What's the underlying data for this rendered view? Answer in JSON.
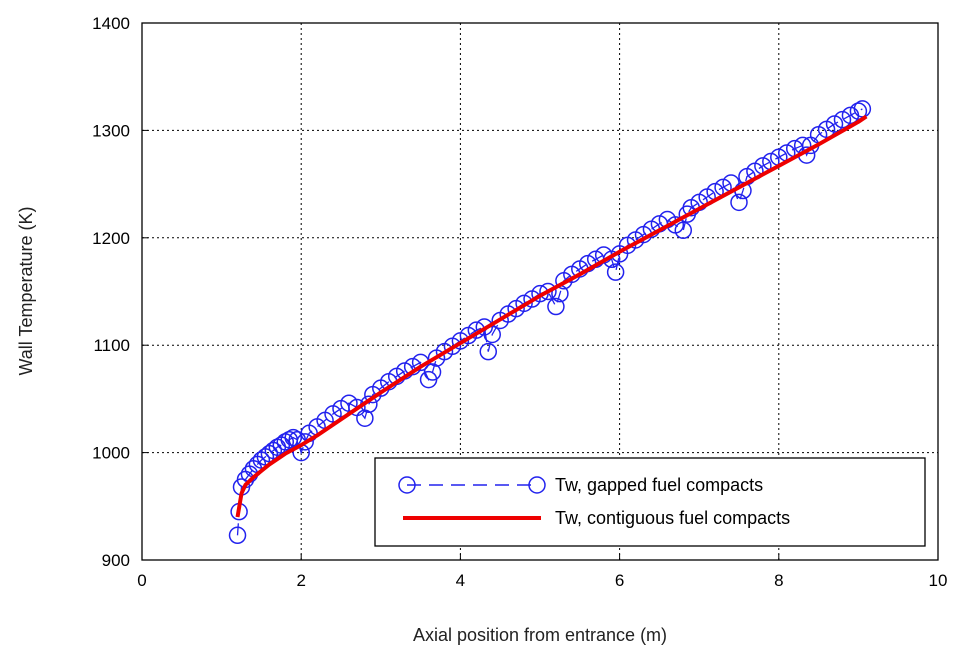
{
  "chart_data": {
    "type": "line",
    "title": "",
    "xlabel": "Axial position from entrance (m)",
    "ylabel": "Wall Temperature (K)",
    "xlim": [
      0,
      10
    ],
    "ylim": [
      900,
      1400
    ],
    "xticks": [
      0,
      2,
      4,
      6,
      8,
      10
    ],
    "yticks": [
      900,
      1000,
      1100,
      1200,
      1300,
      1400
    ],
    "xtick_labels": [
      "0",
      "2",
      "4",
      "6",
      "8",
      "10"
    ],
    "ytick_labels": [
      "900",
      "1000",
      "1100",
      "1200",
      "1300",
      "1400"
    ],
    "grid": "dotted",
    "legend_position": "bottom-right",
    "series": [
      {
        "name": "Tw, gapped fuel compacts",
        "style": "dashed-circles",
        "color": "#0000cc",
        "x": [
          1.2,
          1.22,
          1.25,
          1.3,
          1.35,
          1.4,
          1.45,
          1.5,
          1.55,
          1.6,
          1.65,
          1.7,
          1.75,
          1.8,
          1.85,
          1.9,
          1.95,
          2.0,
          2.05,
          2.1,
          2.2,
          2.3,
          2.4,
          2.5,
          2.6,
          2.7,
          2.8,
          2.85,
          2.9,
          3.0,
          3.1,
          3.2,
          3.3,
          3.4,
          3.5,
          3.6,
          3.65,
          3.7,
          3.8,
          3.9,
          4.0,
          4.1,
          4.2,
          4.3,
          4.35,
          4.4,
          4.5,
          4.6,
          4.7,
          4.8,
          4.9,
          5.0,
          5.1,
          5.2,
          5.25,
          5.3,
          5.4,
          5.5,
          5.6,
          5.7,
          5.8,
          5.9,
          5.95,
          6.0,
          6.1,
          6.2,
          6.3,
          6.4,
          6.5,
          6.6,
          6.7,
          6.8,
          6.85,
          6.9,
          7.0,
          7.1,
          7.2,
          7.3,
          7.4,
          7.5,
          7.55,
          7.6,
          7.7,
          7.8,
          7.9,
          8.0,
          8.1,
          8.2,
          8.3,
          8.35,
          8.4,
          8.5,
          8.6,
          8.7,
          8.8,
          8.9,
          9.0,
          9.05
        ],
        "y": [
          923,
          945,
          968,
          975,
          980,
          985,
          989,
          993,
          996,
          999,
          1002,
          1005,
          1007,
          1010,
          1012,
          1014,
          1012,
          1000,
          1010,
          1018,
          1024,
          1030,
          1036,
          1041,
          1046,
          1042,
          1032,
          1045,
          1054,
          1060,
          1066,
          1071,
          1076,
          1080,
          1084,
          1068,
          1075,
          1088,
          1094,
          1099,
          1104,
          1109,
          1114,
          1117,
          1094,
          1110,
          1123,
          1129,
          1134,
          1139,
          1143,
          1148,
          1150,
          1136,
          1148,
          1160,
          1166,
          1171,
          1176,
          1180,
          1184,
          1180,
          1168,
          1185,
          1193,
          1198,
          1203,
          1208,
          1213,
          1217,
          1212,
          1207,
          1222,
          1228,
          1233,
          1238,
          1243,
          1247,
          1251,
          1233,
          1244,
          1257,
          1262,
          1267,
          1271,
          1275,
          1279,
          1283,
          1286,
          1277,
          1286,
          1296,
          1301,
          1306,
          1310,
          1314,
          1318,
          1320
        ]
      },
      {
        "name": "Tw, contiguous fuel compacts",
        "style": "solid",
        "color": "#ee0000",
        "x": [
          1.2,
          1.25,
          1.3,
          1.4,
          1.5,
          1.6,
          1.8,
          2.0,
          2.2,
          2.5,
          3.0,
          3.5,
          4.0,
          4.5,
          5.0,
          5.5,
          6.0,
          6.5,
          7.0,
          7.5,
          8.0,
          8.5,
          9.0,
          9.1
        ],
        "y": [
          940,
          962,
          970,
          977,
          983,
          989,
          999,
          1007,
          1016,
          1031,
          1056,
          1080,
          1102,
          1124,
          1146,
          1166,
          1187,
          1207,
          1227,
          1247,
          1267,
          1287,
          1308,
          1313
        ]
      }
    ]
  }
}
